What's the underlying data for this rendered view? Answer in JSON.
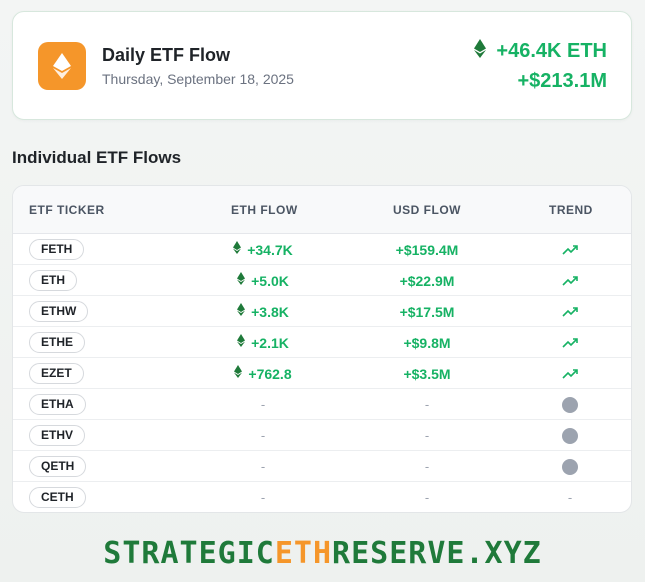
{
  "header": {
    "title": "Daily ETF Flow",
    "date": "Thursday, September 18, 2025",
    "total_eth": "+46.4K ETH",
    "total_usd": "+$213.1M",
    "icon": "ethereum-icon",
    "icon_bg": "#f5962a"
  },
  "section_title": "Individual ETF Flows",
  "table": {
    "columns": [
      "ETF TICKER",
      "ETH FLOW",
      "USD FLOW",
      "TREND"
    ],
    "rows": [
      {
        "ticker": "FETH",
        "eth": "+34.7K",
        "usd": "+$159.4M",
        "trend": "up"
      },
      {
        "ticker": "ETH",
        "eth": "+5.0K",
        "usd": "+$22.9M",
        "trend": "up"
      },
      {
        "ticker": "ETHW",
        "eth": "+3.8K",
        "usd": "+$17.5M",
        "trend": "up"
      },
      {
        "ticker": "ETHE",
        "eth": "+2.1K",
        "usd": "+$9.8M",
        "trend": "up"
      },
      {
        "ticker": "EZET",
        "eth": "+762.8",
        "usd": "+$3.5M",
        "trend": "up"
      },
      {
        "ticker": "ETHA",
        "eth": "-",
        "usd": "-",
        "trend": "neutral"
      },
      {
        "ticker": "ETHV",
        "eth": "-",
        "usd": "-",
        "trend": "neutral"
      },
      {
        "ticker": "QETH",
        "eth": "-",
        "usd": "-",
        "trend": "neutral"
      },
      {
        "ticker": "CETH",
        "eth": "-",
        "usd": "-",
        "trend": "none"
      }
    ]
  },
  "footer": {
    "part1": "STRATEGIC",
    "part2": "ETH",
    "part3": "RESERVE.XYZ"
  },
  "colors": {
    "positive": "#16b264",
    "brand_orange": "#f5962a",
    "footer_green": "#1f7a3a",
    "neutral_gray": "#9ca3af"
  }
}
